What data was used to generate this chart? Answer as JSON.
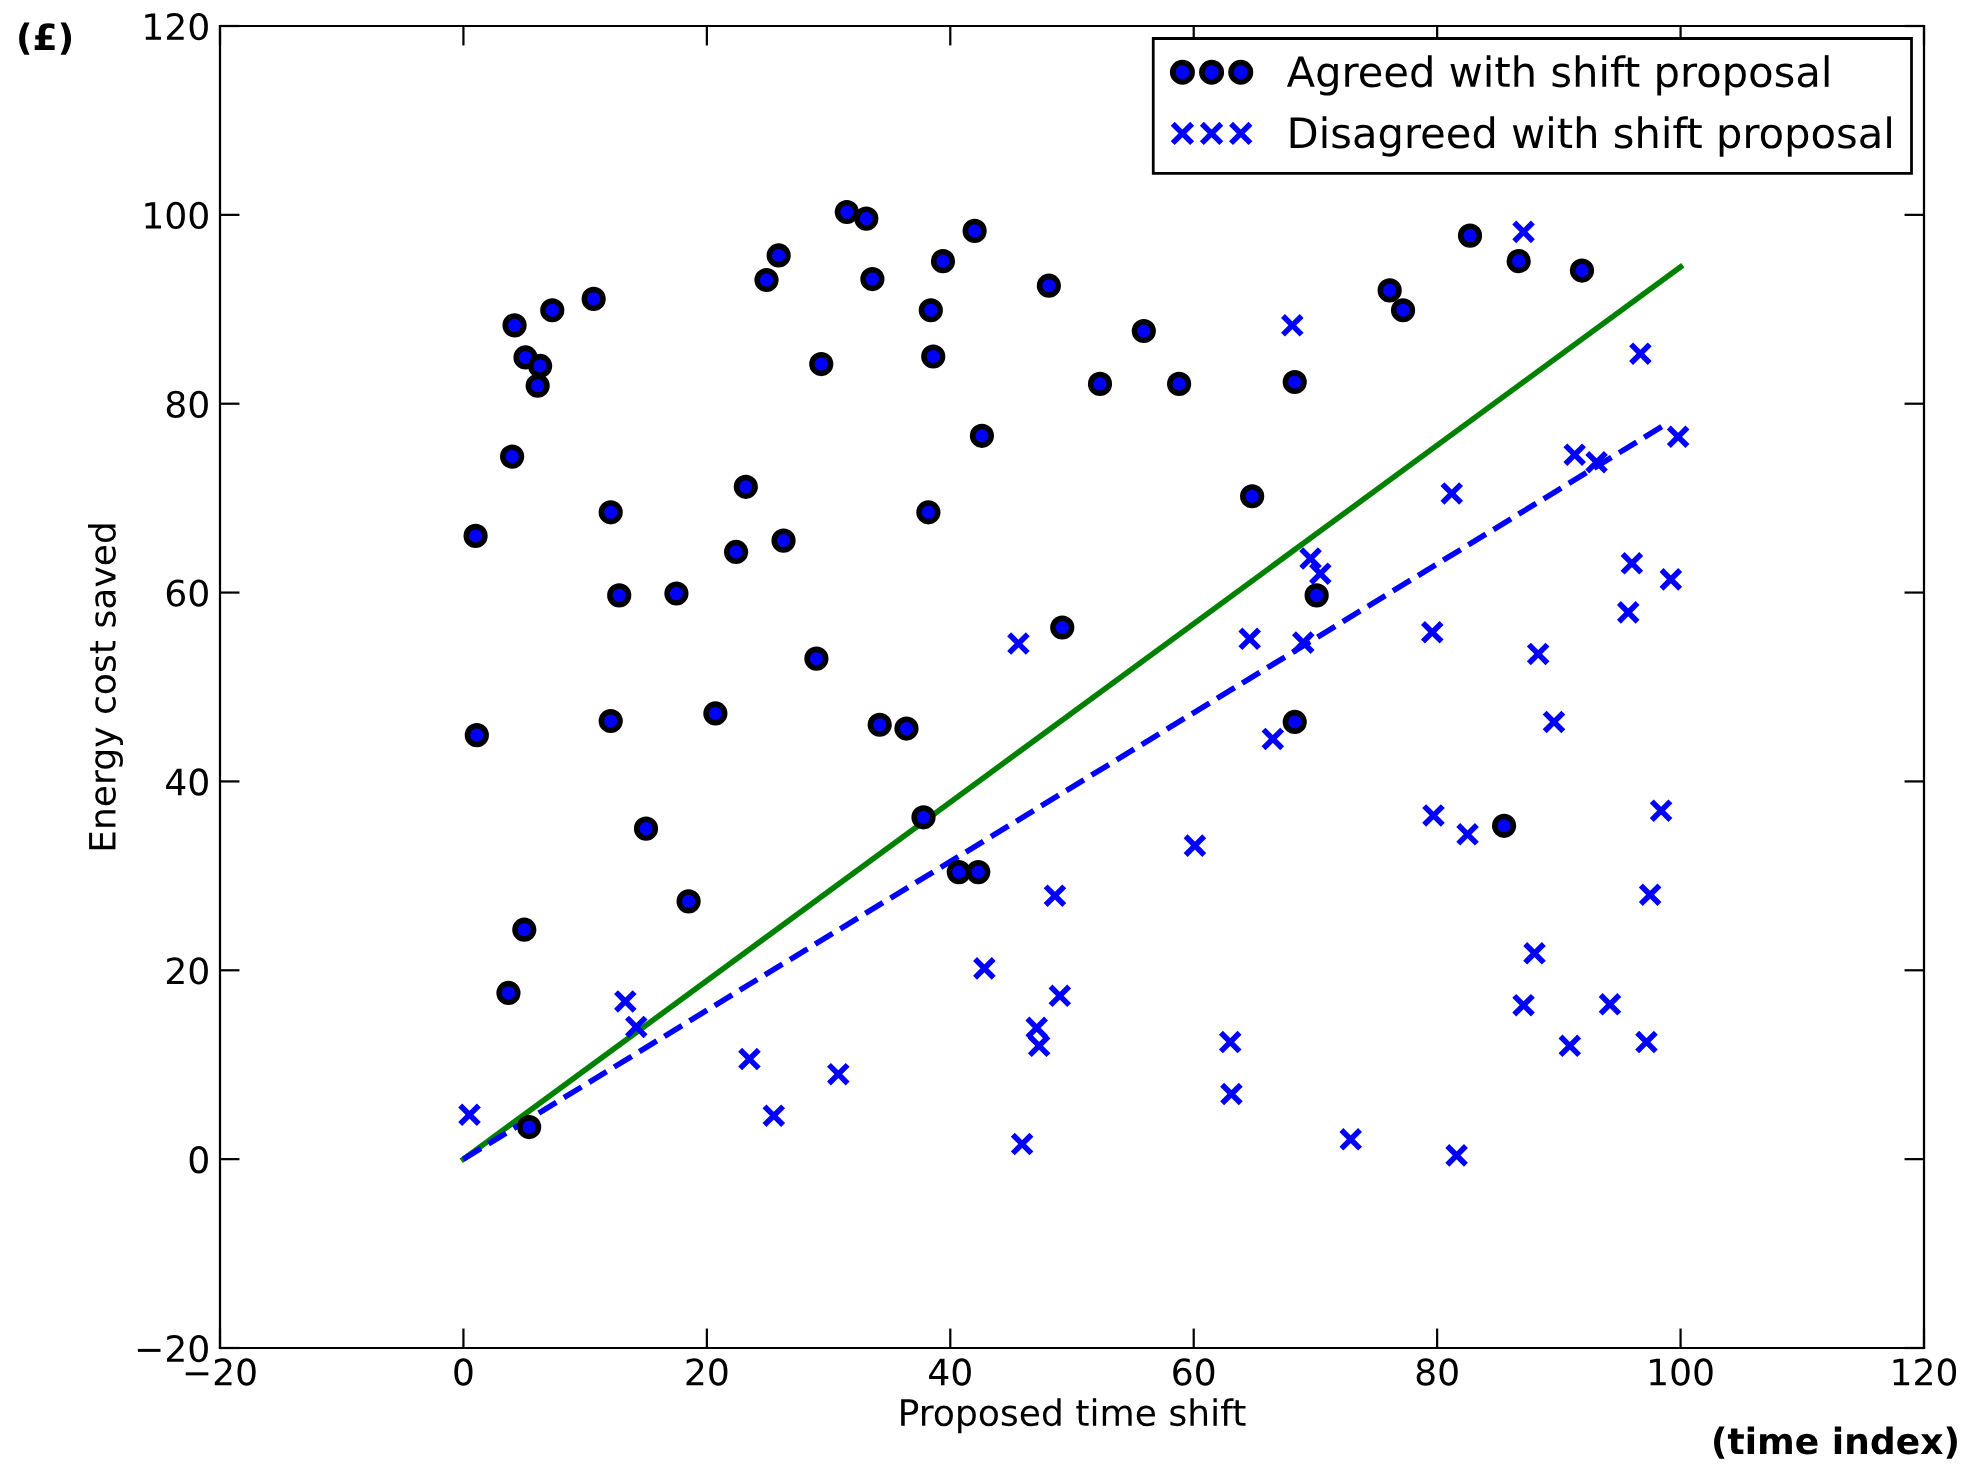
{
  "chart_data": {
    "type": "scatter",
    "xlabel": "Proposed time shift",
    "ylabel": "Energy cost saved",
    "annotations": [
      "(£)",
      "(time index)"
    ],
    "xlim": [
      -20,
      120
    ],
    "ylim": [
      -20,
      120
    ],
    "xticks": [
      {
        "value": -20,
        "label": "−20"
      },
      0,
      20,
      40,
      60,
      80,
      100,
      120
    ],
    "yticks": [
      {
        "value": -20,
        "label": "−20"
      },
      0,
      20,
      40,
      60,
      80,
      100,
      120
    ],
    "grid": false,
    "legend": "top right",
    "series": [
      {
        "name": "Agreed with shift proposal",
        "color": "#0000ff",
        "marker": "circle",
        "x": [
          31.5,
          33.1,
          25.9,
          24.9,
          33.6,
          39.4,
          38.4,
          38.6,
          10.7,
          7.3,
          4.2,
          5.1,
          6.3,
          6.1,
          29.4,
          4.0,
          23.2,
          12.1,
          38.2,
          1.0,
          22.4,
          26.3,
          12.8,
          17.5,
          29.0,
          1.1,
          12.1,
          20.7,
          34.2,
          36.4,
          15.0,
          37.8,
          18.5,
          5.0,
          3.7,
          5.4,
          40.7,
          42.3,
          42.0,
          48.1,
          55.9,
          52.3,
          58.8,
          68.3,
          76.1,
          77.2,
          42.6,
          64.8,
          70.1,
          49.2,
          68.3,
          82.7,
          86.7,
          91.9,
          85.5
        ],
        "values": [
          100.3,
          99.6,
          95.7,
          93.1,
          93.2,
          95.1,
          89.9,
          85.0,
          91.1,
          89.9,
          88.3,
          84.9,
          84.0,
          81.9,
          84.2,
          74.4,
          71.2,
          68.5,
          68.5,
          66.0,
          64.3,
          65.5,
          59.7,
          59.9,
          53.0,
          44.9,
          46.4,
          47.2,
          46.0,
          45.6,
          35.0,
          36.2,
          27.3,
          24.3,
          17.6,
          3.4,
          30.4,
          30.4,
          98.3,
          92.5,
          87.7,
          82.1,
          82.1,
          82.3,
          92.0,
          89.9,
          76.6,
          70.2,
          59.7,
          56.3,
          46.3,
          97.8,
          95.1,
          94.1,
          35.3
        ]
      },
      {
        "name": "Disagreed with shift proposal",
        "color": "#0000ff",
        "marker": "cross",
        "x": [
          0.5,
          13.3,
          14.2,
          23.5,
          25.5,
          30.8,
          68.1,
          69.6,
          70.4,
          45.6,
          64.6,
          69.0,
          66.5,
          60.1,
          48.6,
          42.8,
          49.0,
          47.1,
          47.3,
          63.0,
          63.1,
          45.9,
          72.9,
          79.6,
          79.7,
          87.1,
          96.7,
          81.2,
          91.3,
          93.1,
          99.8,
          96.0,
          99.2,
          95.7,
          88.3,
          89.6,
          82.5,
          98.4,
          97.5,
          88.0,
          87.1,
          94.2,
          90.9,
          97.2,
          81.6
        ],
        "values": [
          4.7,
          16.7,
          14.0,
          10.6,
          4.6,
          9.0,
          88.3,
          63.6,
          62.0,
          54.6,
          55.1,
          54.7,
          44.5,
          33.2,
          27.9,
          20.2,
          17.3,
          13.9,
          12.0,
          12.4,
          6.9,
          1.6,
          2.1,
          55.8,
          36.4,
          98.2,
          85.3,
          70.5,
          74.6,
          73.8,
          76.5,
          63.1,
          61.4,
          57.9,
          53.5,
          46.3,
          34.4,
          36.9,
          28.0,
          21.8,
          16.3,
          16.4,
          12.0,
          12.4,
          0.4
        ]
      },
      {
        "type": "line",
        "color": "#008000",
        "line_style": "solid",
        "x": [
          0,
          100
        ],
        "values": [
          0,
          94.5
        ]
      },
      {
        "type": "line",
        "color": "#0000ff",
        "line_style": "dashed",
        "x": [
          0,
          99
        ],
        "values": [
          0,
          78
        ]
      }
    ]
  }
}
